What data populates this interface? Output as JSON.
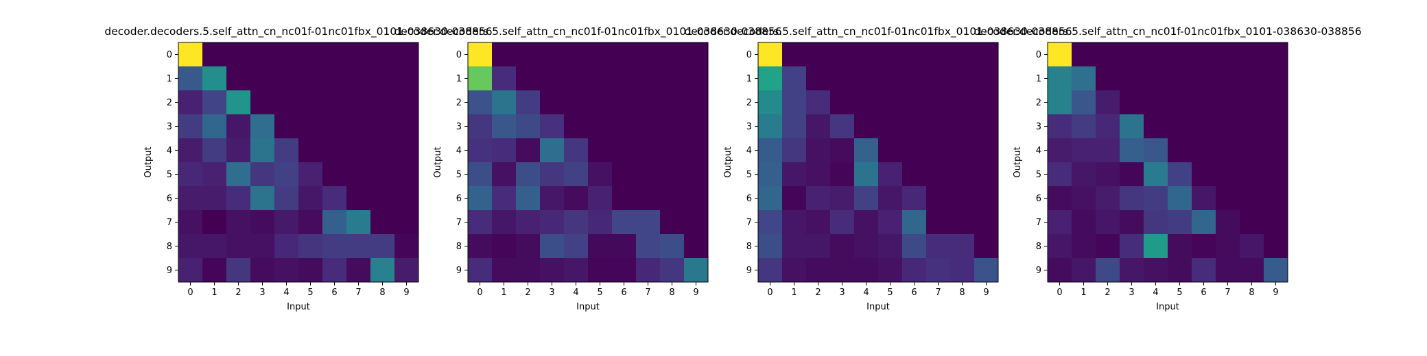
{
  "chart_data": [
    {
      "type": "heatmap",
      "title": "decoder.decoders.5.self_attn_cn_nc01f-01nc01fbx_0101-038630-038856",
      "xlabel": "Input",
      "ylabel": "Output",
      "x_ticks": [
        "0",
        "1",
        "2",
        "3",
        "4",
        "5",
        "6",
        "7",
        "8",
        "9"
      ],
      "y_ticks": [
        "0",
        "1",
        "2",
        "3",
        "4",
        "5",
        "6",
        "7",
        "8",
        "9"
      ],
      "vlim": [
        0,
        1
      ],
      "colormap": "viridis",
      "values": [
        [
          1.0,
          0,
          0,
          0,
          0,
          0,
          0,
          0,
          0,
          0
        ],
        [
          0.35,
          0.62,
          0,
          0,
          0,
          0,
          0,
          0,
          0,
          0
        ],
        [
          0.12,
          0.25,
          0.65,
          0,
          0,
          0,
          0,
          0,
          0,
          0
        ],
        [
          0.22,
          0.42,
          0.08,
          0.45,
          0,
          0,
          0,
          0,
          0,
          0
        ],
        [
          0.1,
          0.22,
          0.1,
          0.48,
          0.22,
          0,
          0,
          0,
          0,
          0
        ],
        [
          0.14,
          0.12,
          0.45,
          0.2,
          0.24,
          0.12,
          0,
          0,
          0,
          0
        ],
        [
          0.1,
          0.1,
          0.16,
          0.48,
          0.22,
          0.08,
          0.16,
          0,
          0,
          0
        ],
        [
          0.06,
          0.0,
          0.06,
          0.04,
          0.09,
          0.04,
          0.38,
          0.52,
          0,
          0
        ],
        [
          0.08,
          0.08,
          0.06,
          0.06,
          0.14,
          0.19,
          0.22,
          0.22,
          0.22,
          0.02
        ],
        [
          0.12,
          0.02,
          0.2,
          0.04,
          0.06,
          0.04,
          0.16,
          0.04,
          0.55,
          0.1
        ]
      ]
    },
    {
      "type": "heatmap",
      "title": "decoder.decoders.5.self_attn_cn_nc01f-01nc01fbx_0101-038630-038856",
      "xlabel": "Input",
      "ylabel": "Output",
      "x_ticks": [
        "0",
        "1",
        "2",
        "3",
        "4",
        "5",
        "6",
        "7",
        "8",
        "9"
      ],
      "y_ticks": [
        "0",
        "1",
        "2",
        "3",
        "4",
        "5",
        "6",
        "7",
        "8",
        "9"
      ],
      "vlim": [
        0,
        1
      ],
      "colormap": "viridis",
      "values": [
        [
          1.0,
          0,
          0,
          0,
          0,
          0,
          0,
          0,
          0,
          0
        ],
        [
          0.85,
          0.16,
          0,
          0,
          0,
          0,
          0,
          0,
          0,
          0
        ],
        [
          0.32,
          0.48,
          0.22,
          0,
          0,
          0,
          0,
          0,
          0,
          0
        ],
        [
          0.2,
          0.34,
          0.28,
          0.18,
          0,
          0,
          0,
          0,
          0,
          0
        ],
        [
          0.18,
          0.16,
          0.04,
          0.45,
          0.2,
          0,
          0,
          0,
          0,
          0
        ],
        [
          0.3,
          0.06,
          0.3,
          0.2,
          0.24,
          0.06,
          0,
          0,
          0,
          0
        ],
        [
          0.4,
          0.16,
          0.38,
          0.08,
          0.04,
          0.12,
          0,
          0,
          0,
          0
        ],
        [
          0.16,
          0.08,
          0.12,
          0.14,
          0.2,
          0.14,
          0.26,
          0.26,
          0,
          0
        ],
        [
          0.04,
          0.02,
          0.04,
          0.3,
          0.24,
          0.03,
          0.03,
          0.26,
          0.3,
          0
        ],
        [
          0.16,
          0.04,
          0.04,
          0.06,
          0.08,
          0.02,
          0.02,
          0.14,
          0.2,
          0.5
        ]
      ]
    },
    {
      "type": "heatmap",
      "title": "decoder.decoders.5.self_attn_cn_nc01f-01nc01fbx_0101-038630-038856",
      "xlabel": "Input",
      "ylabel": "Output",
      "x_ticks": [
        "0",
        "1",
        "2",
        "3",
        "4",
        "5",
        "6",
        "7",
        "8",
        "9"
      ],
      "y_ticks": [
        "0",
        "1",
        "2",
        "3",
        "4",
        "5",
        "6",
        "7",
        "8",
        "9"
      ],
      "vlim": [
        0,
        1
      ],
      "colormap": "viridis",
      "values": [
        [
          1.0,
          0,
          0,
          0,
          0,
          0,
          0,
          0,
          0,
          0
        ],
        [
          0.72,
          0.24,
          0,
          0,
          0,
          0,
          0,
          0,
          0,
          0
        ],
        [
          0.6,
          0.24,
          0.16,
          0,
          0,
          0,
          0,
          0,
          0,
          0
        ],
        [
          0.52,
          0.24,
          0.08,
          0.2,
          0,
          0,
          0,
          0,
          0,
          0
        ],
        [
          0.36,
          0.2,
          0.06,
          0.04,
          0.4,
          0,
          0,
          0,
          0,
          0
        ],
        [
          0.38,
          0.08,
          0.06,
          0.02,
          0.48,
          0.12,
          0,
          0,
          0,
          0
        ],
        [
          0.42,
          0.02,
          0.12,
          0.1,
          0.24,
          0.08,
          0.14,
          0,
          0,
          0
        ],
        [
          0.26,
          0.08,
          0.06,
          0.16,
          0.06,
          0.12,
          0.42,
          0,
          0,
          0
        ],
        [
          0.3,
          0.08,
          0.08,
          0.04,
          0.06,
          0.08,
          0.28,
          0.16,
          0.16,
          0
        ],
        [
          0.2,
          0.06,
          0.04,
          0.04,
          0.04,
          0.06,
          0.14,
          0.18,
          0.16,
          0.32
        ]
      ]
    },
    {
      "type": "heatmap",
      "title": "decoder.decoders.5.self_attn_cn_nc01f-01nc01fbx_0101-038630-038856",
      "xlabel": "Input",
      "ylabel": "Output",
      "x_ticks": [
        "0",
        "1",
        "2",
        "3",
        "4",
        "5",
        "6",
        "7",
        "8",
        "9"
      ],
      "y_ticks": [
        "0",
        "1",
        "2",
        "3",
        "4",
        "5",
        "6",
        "7",
        "8",
        "9"
      ],
      "vlim": [
        0,
        1
      ],
      "colormap": "viridis",
      "values": [
        [
          1.0,
          0,
          0,
          0,
          0,
          0,
          0,
          0,
          0,
          0
        ],
        [
          0.55,
          0.46,
          0,
          0,
          0,
          0,
          0,
          0,
          0,
          0
        ],
        [
          0.55,
          0.34,
          0.1,
          0,
          0,
          0,
          0,
          0,
          0,
          0
        ],
        [
          0.16,
          0.22,
          0.14,
          0.48,
          0,
          0,
          0,
          0,
          0,
          0
        ],
        [
          0.1,
          0.12,
          0.12,
          0.38,
          0.34,
          0,
          0,
          0,
          0,
          0
        ],
        [
          0.16,
          0.08,
          0.06,
          0.02,
          0.52,
          0.24,
          0,
          0,
          0,
          0
        ],
        [
          0.04,
          0.06,
          0.1,
          0.2,
          0.22,
          0.42,
          0.08,
          0,
          0,
          0
        ],
        [
          0.12,
          0.04,
          0.08,
          0.04,
          0.2,
          0.22,
          0.42,
          0.04,
          0,
          0
        ],
        [
          0.08,
          0.04,
          0.02,
          0.16,
          0.68,
          0.04,
          0.02,
          0.04,
          0.08,
          0
        ],
        [
          0.04,
          0.08,
          0.28,
          0.08,
          0.06,
          0.04,
          0.16,
          0.04,
          0.04,
          0.36
        ]
      ]
    }
  ]
}
